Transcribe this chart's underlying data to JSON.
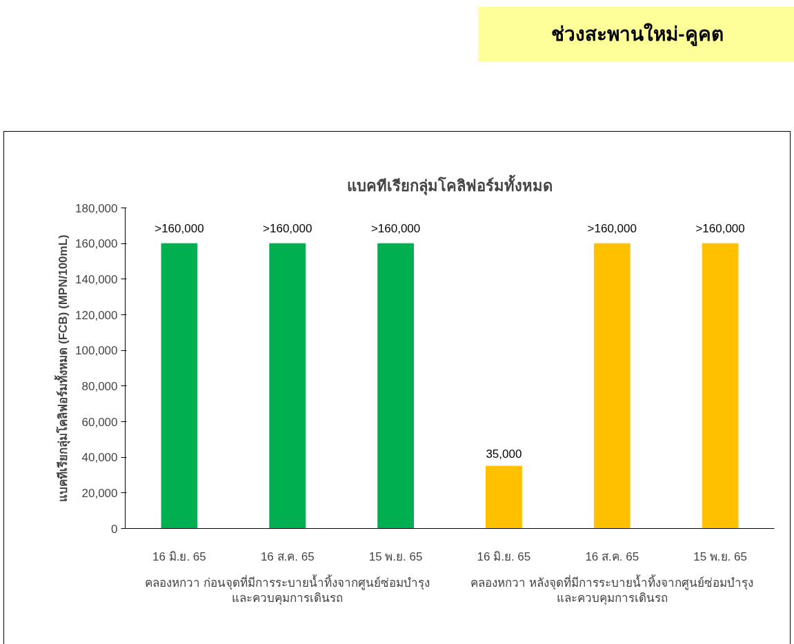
{
  "chart_data": {
    "type": "bar",
    "title": "แบคทีเรียกลุ่มโคลิฟอร์มทั้งหมด",
    "subtitle": "ช่วงสะพานใหม่-คูคต",
    "ylabel": "แบคทีเรียกลุ่มโคลิฟอร์มทั้งหมด (FCB) (MPN/100mL)",
    "categories": [
      "16 มิ.ย. 65",
      "16 ส.ค. 65",
      "15 พ.ย. 65",
      "16 มิ.ย. 65",
      "16 ส.ค. 65",
      "15 พ.ย. 65"
    ],
    "values": [
      160000,
      160000,
      160000,
      35000,
      160000,
      160000
    ],
    "colors": [
      "#00b050",
      "#00b050",
      "#00b050",
      "#ffc000",
      "#ffc000",
      "#ffc000"
    ],
    "value_labels": [
      ">160,000",
      ">160,000",
      ">160,000",
      "35,000",
      ">160,000",
      ">160,000"
    ],
    "ylim": [
      0,
      180000
    ],
    "yticks": [
      {
        "value": 0,
        "label": "0"
      },
      {
        "value": 20000,
        "label": "20,000"
      },
      {
        "value": 40000,
        "label": "40,000"
      },
      {
        "value": 60000,
        "label": "60,000"
      },
      {
        "value": 80000,
        "label": "80,000"
      },
      {
        "value": 100000,
        "label": "100,000"
      },
      {
        "value": 120000,
        "label": "120,000"
      },
      {
        "value": 140000,
        "label": "140,000"
      },
      {
        "value": 160000,
        "label": "160,000"
      },
      {
        "value": 180000,
        "label": "180,000"
      }
    ],
    "annotations": [
      "คลองหกวา ก่อนจุดที่มีการระบายน้ำทิ้งจากศูนย์ซ่อมบำรุง\nและควบคุมการเดินรถ",
      "คลองหกวา หลังจุดที่มีการระบายน้ำทิ้งจากศูนย์ซ่อมบำรุง\nและควบคุมการเดินรถ"
    ],
    "grid": false
  }
}
